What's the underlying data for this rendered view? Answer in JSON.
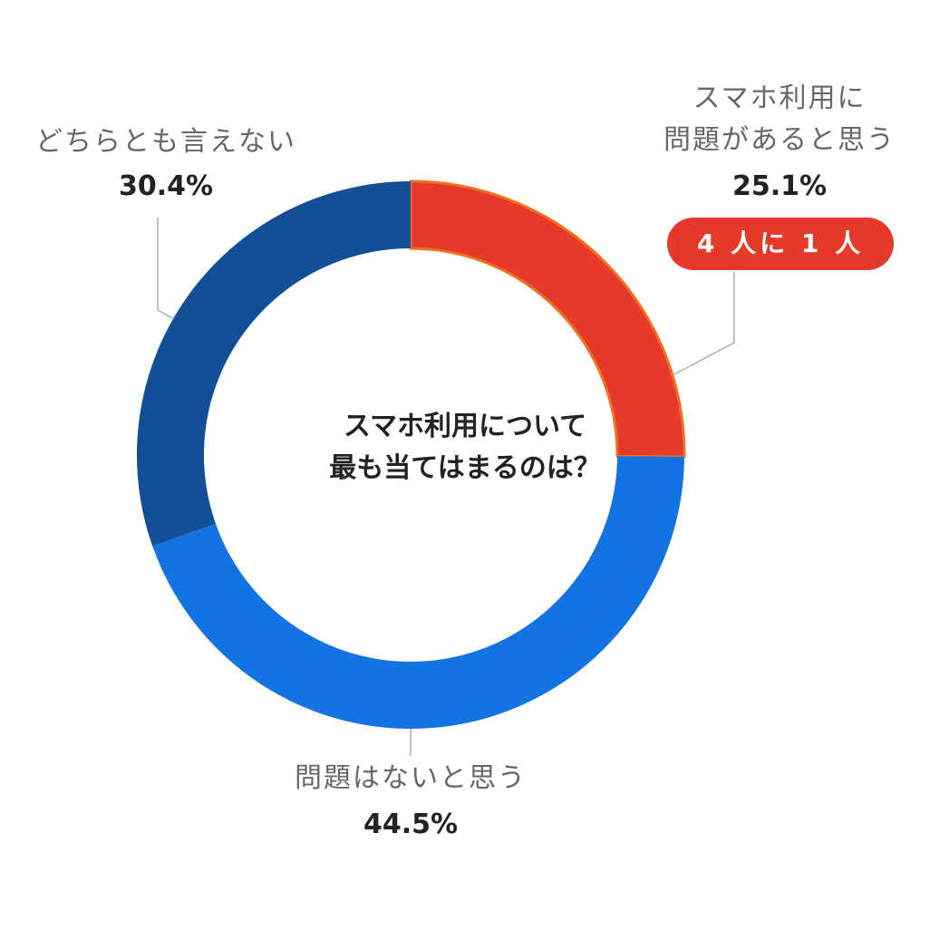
{
  "chart_data": {
    "type": "pie",
    "donut": true,
    "title": "スマホ利用について最も当てはまるのは？",
    "title_lines": [
      "スマホ利用について",
      "最も当てはまるのは？"
    ],
    "unit": "%",
    "slices": [
      {
        "label_lines": [
          "スマホ利用に",
          "問題があると思う"
        ],
        "value": 25.1,
        "value_label": "25.1%",
        "color": "#e5392a",
        "stroke": "#f07020",
        "badge": "4 人に 1 人"
      },
      {
        "label_lines": [
          "問題はないと思う"
        ],
        "value": 44.5,
        "value_label": "44.5%",
        "color": "#1373e3"
      },
      {
        "label_lines": [
          "どちらとも言えない"
        ],
        "value": 30.4,
        "value_label": "30.4%",
        "color": "#134f99"
      }
    ],
    "start": "top",
    "direction": "clockwise",
    "legend": "none"
  }
}
